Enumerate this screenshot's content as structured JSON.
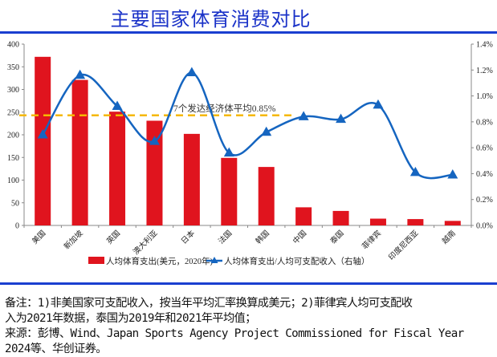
{
  "title": "主要国家体育消费对比",
  "notes": {
    "line1": "备注：1)非美国家可支配收入，按当年平均汇率换算成美元；2)菲律宾人均可支配收",
    "line2": "入为2021年数据，泰国为2019年和2021年平均值；",
    "line3": "来源：彭博、Wind、Japan Sports Agency Project Commissioned for Fiscal Year",
    "line4": "2024等、华创证券。"
  },
  "chart_data": {
    "type": "bar+line",
    "categories": [
      "美国",
      "新加坡",
      "英国",
      "澳大利亚",
      "日本",
      "法国",
      "韩国",
      "中国",
      "泰国",
      "菲律宾",
      "印度尼西亚",
      "越南"
    ],
    "series": [
      {
        "name": "人均体育支出(美元，2020年)",
        "type": "bar",
        "axis": "left",
        "color": "#e0141e",
        "values": [
          372,
          321,
          251,
          231,
          202,
          149,
          129,
          40,
          32,
          15,
          14,
          10
        ]
      },
      {
        "name": "人均体育支出/人均可支配收入（右轴）",
        "type": "line",
        "axis": "right",
        "color": "#1565c0",
        "marker": "triangle",
        "smooth": true,
        "values": [
          0.7,
          1.16,
          0.92,
          0.65,
          1.18,
          0.56,
          0.72,
          0.84,
          0.82,
          0.93,
          0.41,
          0.39
        ]
      }
    ],
    "reference_line": {
      "value": 0.85,
      "axis": "right",
      "label": "7个发达经济体平均0.85%",
      "color": "#f5b800",
      "style": "dashed"
    },
    "y_left": {
      "range": [
        0,
        400
      ],
      "ticks": [
        "0",
        "50",
        "100",
        "150",
        "200",
        "250",
        "300",
        "350",
        "400"
      ]
    },
    "y_right": {
      "range": [
        0,
        1.4
      ],
      "ticks": [
        "0.0%",
        "0.2%",
        "0.4%",
        "0.6%",
        "0.8%",
        "1.0%",
        "1.2%",
        "1.4%"
      ]
    },
    "grid": false,
    "legend": "bottom"
  },
  "colors": {
    "title": "#1a32c8",
    "rule": "#1a3fd0"
  }
}
